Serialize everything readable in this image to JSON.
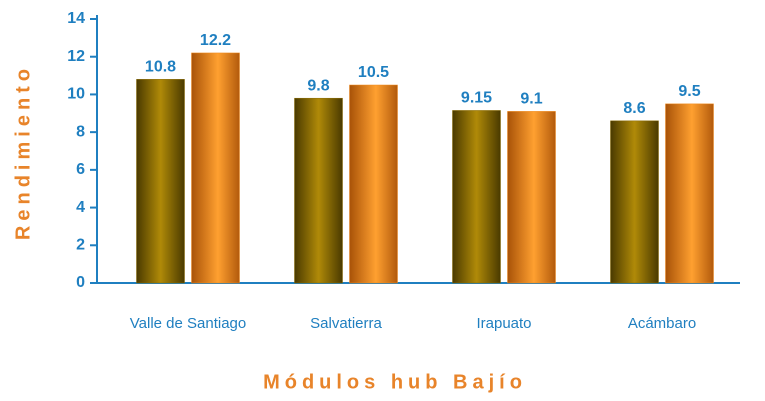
{
  "chart_data": {
    "type": "bar",
    "ylabel": "Rendimiento",
    "xlabel": "Módulos hub Bajío",
    "categories": [
      "Valle de Santiago",
      "Salvatierra",
      "Irapuato",
      "Acámbaro"
    ],
    "series": [
      {
        "color": "#8a6a00",
        "values": [
          10.8,
          9.8,
          9.15,
          8.6
        ]
      },
      {
        "color": "#f08a1c",
        "values": [
          12.2,
          10.5,
          9.1,
          9.5
        ]
      }
    ],
    "ylim": [
      0,
      14
    ],
    "yticks": [
      0,
      2,
      4,
      6,
      8,
      10,
      12,
      14
    ],
    "grid": false
  }
}
